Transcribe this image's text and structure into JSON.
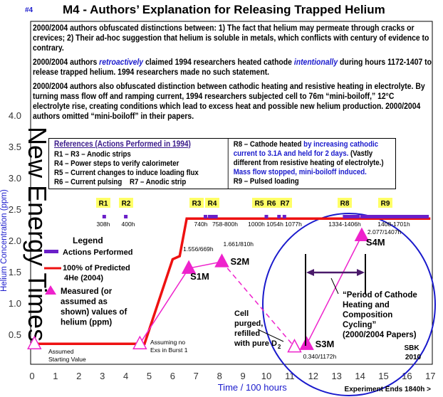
{
  "slide_number": "#4",
  "title": "M4 - Authors’ Explanation for Releasing Trapped Helium",
  "paragraphs": {
    "p1": "2000/2004 authors obfuscated distinctions between: 1) The fact that helium may permeate through cracks or crevices; 2) Their ad-hoc suggestion that helium is soluble in metals, which conflicts with century of evidence to contrary.",
    "p2a": "2000/2004 authors ",
    "p2b": "retroactively",
    "p2c": " claimed 1994 researchers heated cathode ",
    "p2d": "intentionally",
    "p2e": " during hours 1172-1407 to release trapped helium. 1994 researchers made no such statement.",
    "p3": "2000/2004 authors also obfuscated distinction between cathodic heating and resistive heating in electrolyte. By turning mass flow off and ramping current, 1994 researchers subjected cell to 76m “mini-boiloff,” 12°C electrolyte rise, creating conditions which lead to excess heat and possible new helium production. 2000/2004 authors omitted “mini-boiloff” in their papers."
  },
  "references": {
    "heading": "References (Actions Performed in 1994)",
    "left": [
      "R1 – R3 – Anodic strips",
      "R4 – Power steps to verify calorimeter",
      "R5 – Current changes to induce loading flux",
      "R6 – Current pulsing    R7 – Anodic strip"
    ],
    "r8_a": "R8 – Cathode heated ",
    "r8_b": "by increasing cathodic current to 3.1A and held for 2 days.",
    "r8_c": " (Vastly different from resistive heating of electrolyte.) ",
    "r8_d": "Mass flow stopped, mini-boiloff induced.",
    "r9": "R9 – Pulsed loading"
  },
  "watermark": "New Energy Times",
  "colors": {
    "predicted": "#ee1111",
    "measured": "#ee22cc",
    "actions": "#6a1fc8",
    "circle": "#1a1acc",
    "ref_label_bg": "#ffff66",
    "axis_label": "#1a1acc"
  },
  "chart_data": {
    "type": "line",
    "xlabel": "Time / 100 hours",
    "ylabel": "Helium Concentration (ppm)",
    "xlim": [
      0,
      17
    ],
    "ylim": [
      0,
      4.0
    ],
    "x_ticks": [
      "0",
      "1",
      "2",
      "3",
      "4",
      "5",
      "6",
      "7",
      "8",
      "9",
      "10",
      "11",
      "12",
      "13",
      "14",
      "15",
      "16",
      "17"
    ],
    "y_ticks": [
      "0.5",
      "1.0",
      "1.5",
      "2.0",
      "2.5",
      "3.0",
      "3.5",
      "4.0"
    ],
    "grid": false,
    "legend": {
      "title": "Legend",
      "placement": "left",
      "entries": [
        "Actions Performed",
        "100% of Predicted 4He (2004)",
        "Measured (or assumed as shown) values of helium (ppm)"
      ]
    },
    "predicted_series": {
      "name": "100% of Predicted 4He (2004)",
      "x": [
        0,
        4.8,
        6.0,
        6.3,
        6.6,
        17
      ],
      "y": [
        0.35,
        0.35,
        1.7,
        1.75,
        2.35,
        2.35
      ]
    },
    "measured_points": [
      {
        "x": 0.1,
        "y": 0.35,
        "open": true,
        "label": "",
        "note": "Assumed Starting Value"
      },
      {
        "x": 4.6,
        "y": 0.35,
        "open": true,
        "label": "",
        "note": "Assuming no Exs in Burst 1"
      },
      {
        "x": 6.69,
        "y": 1.556,
        "open": false,
        "label": "S1M",
        "note": "1.556/669h"
      },
      {
        "x": 8.1,
        "y": 1.661,
        "open": false,
        "label": "S2M",
        "note": "1.661/810h"
      },
      {
        "x": 11.2,
        "y": 0.3,
        "open": true,
        "label": "",
        "note": ""
      },
      {
        "x": 11.72,
        "y": 0.34,
        "open": false,
        "label": "S3M",
        "note": "0.340/1172h"
      },
      {
        "x": 14.07,
        "y": 2.077,
        "open": false,
        "label": "S4M",
        "note": "2.077/1407h"
      }
    ],
    "actions": [
      {
        "ref": "R1",
        "start": 3.08,
        "end": 3.08,
        "label": "308h"
      },
      {
        "ref": "R2",
        "start": 4.0,
        "end": 4.0,
        "label": "400h"
      },
      {
        "ref": "R3",
        "start": 7.4,
        "end": 7.4,
        "label": "740h"
      },
      {
        "ref": "R4",
        "start": 7.58,
        "end": 8.0,
        "label": "758-800h"
      },
      {
        "ref": "R5",
        "start": 10.0,
        "end": 10.0,
        "label": "1000h"
      },
      {
        "ref": "R6",
        "start": 10.54,
        "end": 10.54,
        "label": "1054h"
      },
      {
        "ref": "R7",
        "start": 10.77,
        "end": 10.77,
        "label": "1077h"
      },
      {
        "ref": "R8",
        "start": 13.34,
        "end": 14.06,
        "label": "1334-1406h"
      },
      {
        "ref": "R9",
        "start": 14.08,
        "end": 17.01,
        "label": "1408-1701h"
      }
    ],
    "annotations": {
      "purge": "Cell purged, refilled with pure D",
      "purge_sub": "2",
      "period": [
        "“Period of Cathode",
        "Heating and",
        "Composition",
        "Cycling”",
        "(2000/2004 Papers)"
      ],
      "credit": [
        "SBK",
        "2010"
      ],
      "end_note": "Experiment Ends 1840h >"
    }
  }
}
